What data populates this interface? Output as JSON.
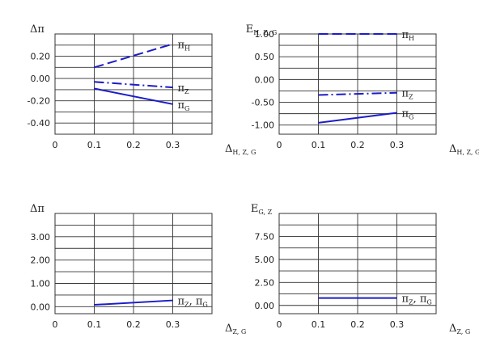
{
  "chart_data": [
    {
      "type": "line",
      "ylabel": "Δπ",
      "xlabel": "Δ",
      "xlabel_sub": "H, Z, G",
      "xlim": [
        0,
        0.4
      ],
      "ylim": [
        -0.5,
        0.4
      ],
      "x_ticks": [
        "0",
        "0.1",
        "0.2",
        "0.3"
      ],
      "y_ticks": [
        "0.20",
        "0.00",
        "-0.20",
        "-0.40"
      ],
      "y_tick_values": [
        0.2,
        0.0,
        -0.2,
        -0.4
      ],
      "x_grid": [
        0.1,
        0.2,
        0.3
      ],
      "y_grid": [
        0.3,
        0.2,
        0.1,
        0.0,
        -0.1,
        -0.2,
        -0.3,
        -0.4
      ],
      "series": [
        {
          "name": "π",
          "sub": "H",
          "dash": "dashed",
          "x": [
            0.1,
            0.3
          ],
          "y": [
            0.1,
            0.31
          ]
        },
        {
          "name": "π",
          "sub": "Z",
          "dash": "dashdot",
          "x": [
            0.1,
            0.3
          ],
          "y": [
            -0.03,
            -0.08
          ]
        },
        {
          "name": "π",
          "sub": "G",
          "dash": "solid",
          "x": [
            0.1,
            0.3
          ],
          "y": [
            -0.09,
            -0.23
          ]
        }
      ]
    },
    {
      "type": "line",
      "ylabel": "E",
      "ylabel_sub": "H, Z, G",
      "xlabel": "Δ",
      "xlabel_sub": "H, Z, G",
      "xlim": [
        0,
        0.4
      ],
      "ylim": [
        -1.2,
        1.0
      ],
      "x_ticks": [
        "0",
        "0.1",
        "0.2",
        "0.3"
      ],
      "y_ticks": [
        "1.00",
        "0.50",
        "0.00",
        "-0.50",
        "-1.00"
      ],
      "y_tick_values": [
        1.0,
        0.5,
        0.0,
        -0.5,
        -1.0
      ],
      "x_grid": [
        0.1,
        0.2,
        0.3
      ],
      "y_grid": [
        1.0,
        0.75,
        0.5,
        0.25,
        0.0,
        -0.25,
        -0.5,
        -0.75,
        -1.0
      ],
      "series": [
        {
          "name": "π",
          "sub": "H",
          "dash": "dashed",
          "x": [
            0.1,
            0.3
          ],
          "y": [
            1.0,
            1.0
          ]
        },
        {
          "name": "π",
          "sub": "Z",
          "dash": "dashdot",
          "x": [
            0.1,
            0.3
          ],
          "y": [
            -0.34,
            -0.29
          ]
        },
        {
          "name": "π",
          "sub": "G",
          "dash": "solid",
          "x": [
            0.1,
            0.3
          ],
          "y": [
            -0.95,
            -0.73
          ]
        }
      ]
    },
    {
      "type": "line",
      "ylabel": "Δπ",
      "xlabel": "Δ",
      "xlabel_sub": "Z, G",
      "xlim": [
        0,
        0.4
      ],
      "ylim": [
        -0.3,
        4.0
      ],
      "x_ticks": [
        "0",
        "0.1",
        "0.2",
        "0.3"
      ],
      "y_ticks": [
        "3.00",
        "2.00",
        "1.00",
        "0.00"
      ],
      "y_tick_values": [
        3.0,
        2.0,
        1.0,
        0.0
      ],
      "x_grid": [
        0.1,
        0.2,
        0.3
      ],
      "y_grid": [
        3.5,
        3.0,
        2.5,
        2.0,
        1.5,
        1.0,
        0.5,
        0.0
      ],
      "series": [
        {
          "name": "π",
          "sub": "Z",
          "name2": "π",
          "sub2": "G",
          "dash": "solid",
          "x": [
            0.1,
            0.3
          ],
          "y": [
            0.08,
            0.27
          ]
        }
      ]
    },
    {
      "type": "line",
      "ylabel": "E",
      "ylabel_sub": "G, Z",
      "xlabel": "Δ",
      "xlabel_sub": "Z, G",
      "xlim": [
        0,
        0.4
      ],
      "ylim": [
        -0.9,
        10.0
      ],
      "x_ticks": [
        "0",
        "0.1",
        "0.2",
        "0.3"
      ],
      "y_ticks": [
        "7.50",
        "5.00",
        "2.50",
        "0.00"
      ],
      "y_tick_values": [
        7.5,
        5.0,
        2.5,
        0.0
      ],
      "x_grid": [
        0.1,
        0.2,
        0.3
      ],
      "y_grid": [
        8.75,
        7.5,
        6.25,
        5.0,
        3.75,
        2.5,
        1.25,
        0.0
      ],
      "series": [
        {
          "name": "π",
          "sub": "Z",
          "name2": "π",
          "sub2": "G",
          "dash": "solid",
          "x": [
            0.1,
            0.3
          ],
          "y": [
            0.8,
            0.8
          ]
        }
      ]
    }
  ],
  "style": {
    "line_color": "#1c1cc8",
    "grid_color": "#333333"
  }
}
